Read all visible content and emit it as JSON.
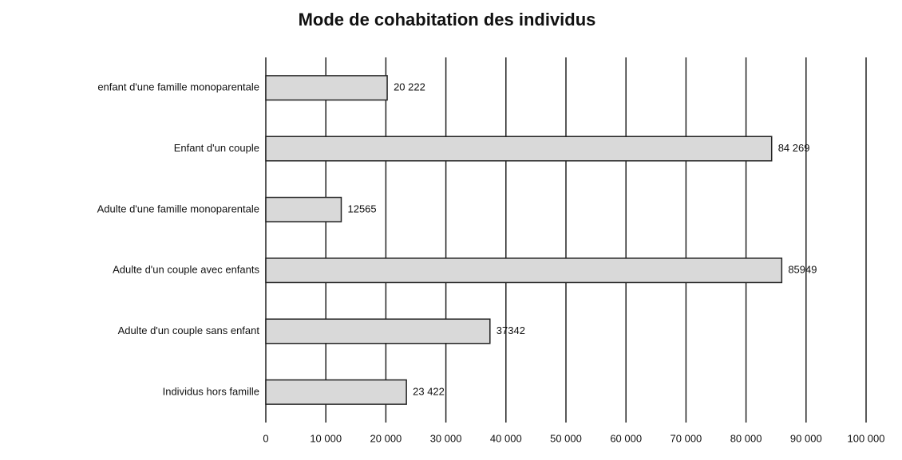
{
  "chart_data": {
    "type": "hbar",
    "title": "Mode de cohabitation des individus",
    "categories": [
      "enfant d'une famille monoparentale",
      "Enfant d'un couple",
      "Adulte d'une famille monoparentale",
      "Adulte d'un couple avec enfants",
      "Adulte d'un couple sans enfant",
      "Individus hors famille"
    ],
    "values": [
      20222,
      84269,
      12565,
      85949,
      37342,
      23422
    ],
    "value_labels": [
      "20 222",
      "84 269",
      "12565",
      "85949",
      "37342",
      "23 422"
    ],
    "color": "#d9d9d9",
    "xlim": [
      0,
      100000
    ],
    "xticks": [
      0,
      {
        "value": 10000,
        "label": "10 000"
      },
      {
        "value": 20000,
        "label": "20 000"
      },
      {
        "value": 30000,
        "label": "30 000"
      },
      {
        "value": 40000,
        "label": "40 000"
      },
      {
        "value": 50000,
        "label": "50 000"
      },
      {
        "value": 60000,
        "label": "60 000"
      },
      {
        "value": 70000,
        "label": "70 000"
      },
      {
        "value": 80000,
        "label": "80 000"
      },
      {
        "value": 90000,
        "label": "90 000"
      },
      {
        "value": 100000,
        "label": "100 000"
      }
    ],
    "grid": true
  }
}
